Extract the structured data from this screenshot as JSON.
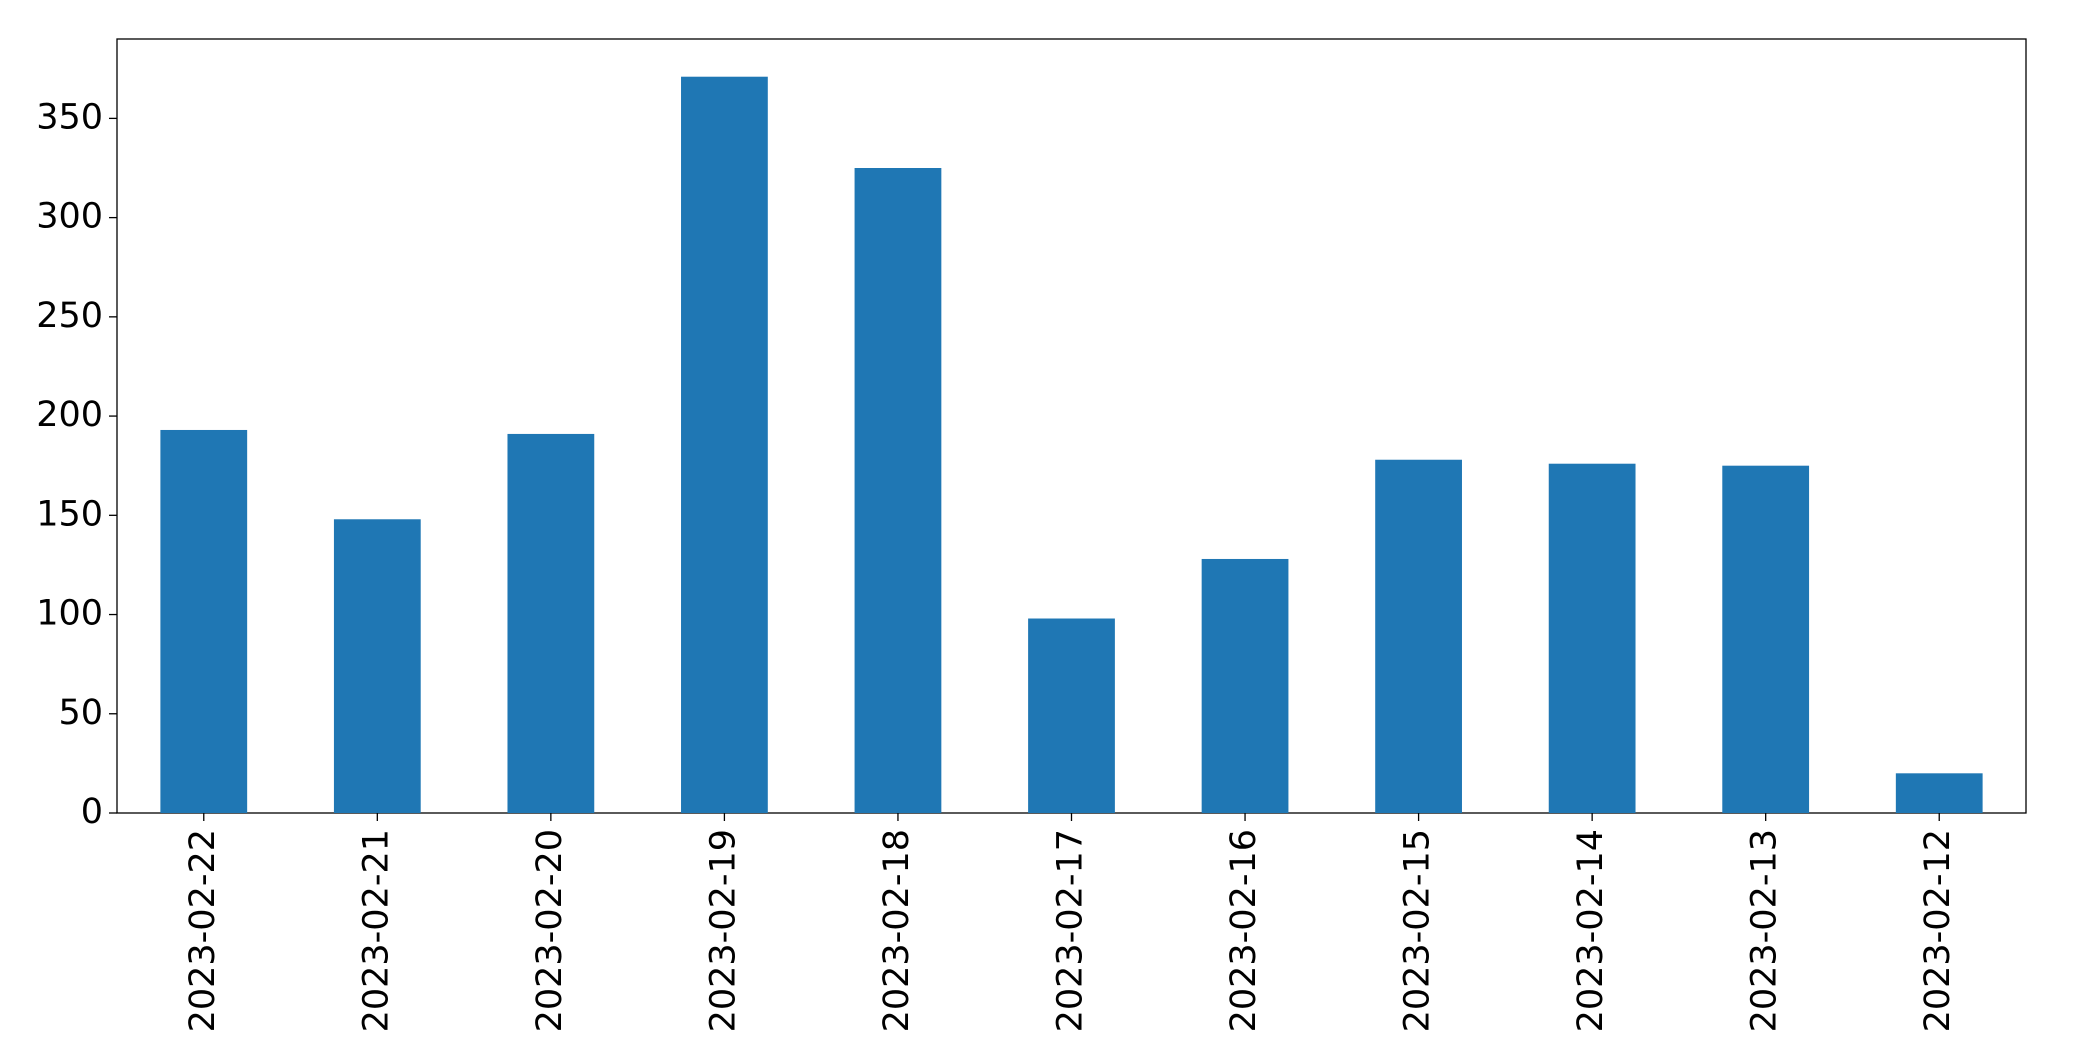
{
  "chart_data": {
    "type": "bar",
    "categories": [
      "2023-02-22",
      "2023-02-21",
      "2023-02-20",
      "2023-02-19",
      "2023-02-18",
      "2023-02-17",
      "2023-02-16",
      "2023-02-15",
      "2023-02-14",
      "2023-02-13",
      "2023-02-12"
    ],
    "values": [
      193,
      148,
      191,
      371,
      325,
      98,
      128,
      178,
      176,
      175,
      20
    ],
    "color": "#1f77b4",
    "ylim": [
      0,
      390
    ],
    "yticks": [
      0,
      50,
      100,
      150,
      200,
      250,
      300,
      350
    ],
    "grid": false
  }
}
